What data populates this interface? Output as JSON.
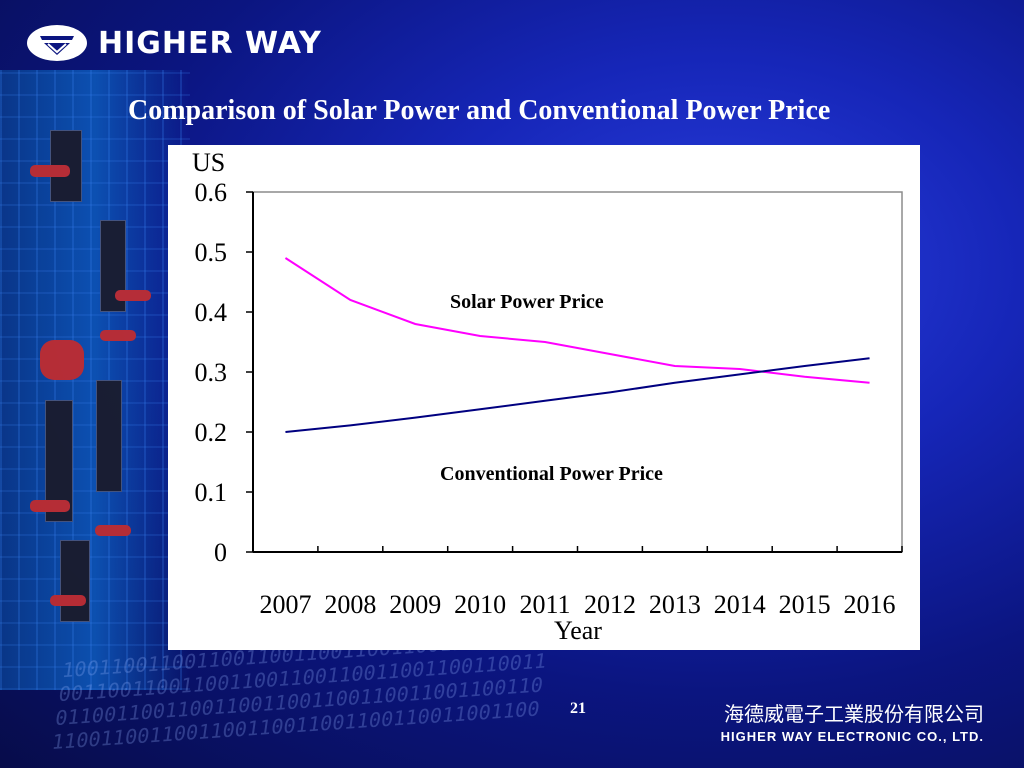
{
  "brand": {
    "name": "HIGHER WAY",
    "icon": "higher-way-logo-icon"
  },
  "slide": {
    "title": "Comparison of Solar Power and Conventional Power Price",
    "page_number": "21"
  },
  "footer": {
    "company_cn": "海德威電子工業股份有限公司",
    "company_en": "HIGHER WAY ELECTRONIC CO., LTD."
  },
  "colors": {
    "solar": "#ff00ff",
    "conventional": "#000080",
    "background": "#1626b8"
  },
  "chart_data": {
    "type": "line",
    "title": "",
    "xlabel": "Year",
    "ylabel": "US",
    "x": [
      2007,
      2008,
      2009,
      2010,
      2011,
      2012,
      2013,
      2014,
      2015,
      2016
    ],
    "ylim": [
      0,
      0.6
    ],
    "yticks": [
      "0",
      "0.1",
      "0.2",
      "0.3",
      "0.4",
      "0.5",
      "0.6"
    ],
    "grid": false,
    "series": [
      {
        "name": "Solar Power Price",
        "values": [
          0.49,
          0.42,
          0.38,
          0.36,
          0.35,
          0.33,
          0.31,
          0.305,
          0.292,
          0.282
        ]
      },
      {
        "name": "Conventional Power Price",
        "values": [
          0.2,
          0.211,
          0.224,
          0.238,
          0.252,
          0.266,
          0.282,
          0.296,
          0.31,
          0.323
        ]
      }
    ]
  }
}
